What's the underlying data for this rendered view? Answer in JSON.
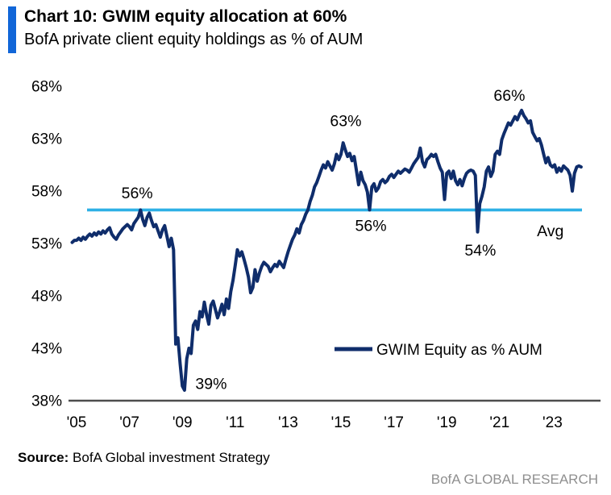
{
  "header": {
    "title": "Chart 10: GWIM equity allocation at 60%",
    "subtitle": "BofA private client equity holdings as % of AUM",
    "accent_color": "#1166d8"
  },
  "footer": {
    "source_label": "Source:",
    "source_text": " BofA Global investment Strategy",
    "brand": "BofA GLOBAL RESEARCH"
  },
  "chart_data": {
    "type": "line",
    "title": "GWIM equity allocation at 60%",
    "xlabel": "",
    "ylabel": "",
    "ylim": [
      38,
      68
    ],
    "xlim": [
      2004.8,
      2024.3
    ],
    "grid": false,
    "y_ticks": [
      "68%",
      "63%",
      "58%",
      "53%",
      "48%",
      "43%",
      "38%"
    ],
    "y_tick_values": [
      68,
      63,
      58,
      53,
      48,
      43,
      38
    ],
    "x_ticks": [
      "'05",
      "'07",
      "'09",
      "'11",
      "'13",
      "'15",
      "'17",
      "'19",
      "'21",
      "'23"
    ],
    "x_tick_years": [
      2005,
      2007,
      2009,
      2011,
      2013,
      2015,
      2017,
      2019,
      2021,
      2023
    ],
    "line_color": "#0f2d6b",
    "axis_color": "#4d4d4d",
    "average_line": {
      "label": "Avg",
      "value": 56.2,
      "color": "#2eb0e6"
    },
    "legend": {
      "label": "GWIM Equity as % AUM",
      "position": "bottom-center"
    },
    "annotations": [
      {
        "text": "56%",
        "year": 2007.29,
        "value": 57.3
      },
      {
        "text": "39%",
        "year": 2010.09,
        "value": 39.1
      },
      {
        "text": "63%",
        "year": 2015.18,
        "value": 64.2
      },
      {
        "text": "56%",
        "year": 2016.13,
        "value": 54.2
      },
      {
        "text": "66%",
        "year": 2021.37,
        "value": 66.6
      },
      {
        "text": "54%",
        "year": 2020.27,
        "value": 51.85
      },
      {
        "text": "Avg",
        "year": 2022.92,
        "value": 53.7
      }
    ],
    "series": [
      {
        "name": "GWIM Equity as % AUM",
        "start_year": 2004.8333,
        "interval_months": 1,
        "values": [
          53.1,
          53.3,
          53.3,
          53.5,
          53.3,
          53.6,
          53.4,
          53.7,
          53.9,
          53.7,
          54.0,
          53.8,
          54.1,
          53.9,
          54.2,
          54.0,
          54.3,
          54.5,
          53.9,
          53.6,
          53.4,
          53.8,
          54.1,
          54.4,
          54.6,
          54.8,
          54.6,
          54.3,
          54.9,
          55.2,
          55.5,
          56.2,
          55.3,
          54.7,
          55.5,
          55.9,
          55.2,
          54.6,
          54.8,
          54.2,
          53.6,
          54.3,
          54.7,
          53.7,
          52.7,
          53.5,
          52.4,
          43.4,
          44.0,
          41.5,
          39.4,
          39.0,
          42.0,
          43.0,
          42.5,
          45.2,
          45.6,
          44.8,
          46.5,
          46.0,
          47.4,
          46.2,
          45.3,
          47.1,
          47.5,
          46.7,
          45.9,
          46.5,
          47.2,
          46.2,
          47.7,
          46.8,
          48.4,
          49.5,
          50.9,
          52.4,
          51.8,
          52.2,
          51.5,
          50.7,
          49.8,
          48.3,
          48.8,
          50.5,
          49.4,
          50.2,
          50.8,
          51.2,
          51.0,
          50.8,
          50.3,
          50.7,
          51.0,
          50.8,
          51.3,
          51.0,
          50.7,
          51.5,
          52.2,
          52.8,
          53.4,
          53.8,
          54.4,
          54.0,
          54.8,
          55.2,
          55.8,
          56.2,
          57.0,
          57.6,
          58.4,
          58.8,
          59.4,
          60.0,
          60.5,
          60.2,
          60.8,
          60.4,
          60.0,
          60.6,
          61.5,
          61.0,
          61.5,
          62.6,
          61.9,
          61.3,
          61.6,
          60.9,
          61.3,
          60.0,
          58.6,
          59.8,
          59.0,
          58.6,
          57.9,
          56.2,
          58.4,
          58.7,
          58.0,
          58.3,
          58.9,
          59.1,
          58.8,
          59.0,
          59.4,
          59.6,
          59.3,
          59.6,
          59.9,
          59.7,
          59.9,
          60.1,
          60.0,
          59.8,
          60.2,
          60.6,
          60.9,
          61.2,
          62.1,
          60.8,
          60.3,
          61.0,
          61.2,
          61.5,
          61.3,
          61.5,
          60.8,
          60.2,
          59.8,
          57.2,
          59.7,
          59.9,
          59.2,
          59.9,
          59.0,
          58.6,
          59.1,
          58.5,
          59.2,
          59.7,
          59.9,
          60.0,
          59.9,
          59.5,
          54.1,
          56.8,
          57.5,
          58.4,
          59.9,
          60.3,
          59.4,
          59.9,
          61.5,
          61.8,
          61.5,
          62.9,
          63.5,
          64.0,
          64.5,
          64.3,
          64.7,
          65.1,
          64.8,
          65.3,
          65.7,
          65.2,
          64.9,
          64.5,
          64.7,
          63.6,
          63.2,
          62.8,
          63.0,
          62.4,
          61.5,
          60.7,
          61.2,
          60.5,
          60.3,
          60.5,
          59.8,
          60.2,
          59.9,
          60.4,
          60.2,
          60.0,
          59.5,
          58.0,
          59.7,
          60.3,
          60.4,
          60.3
        ]
      }
    ]
  }
}
